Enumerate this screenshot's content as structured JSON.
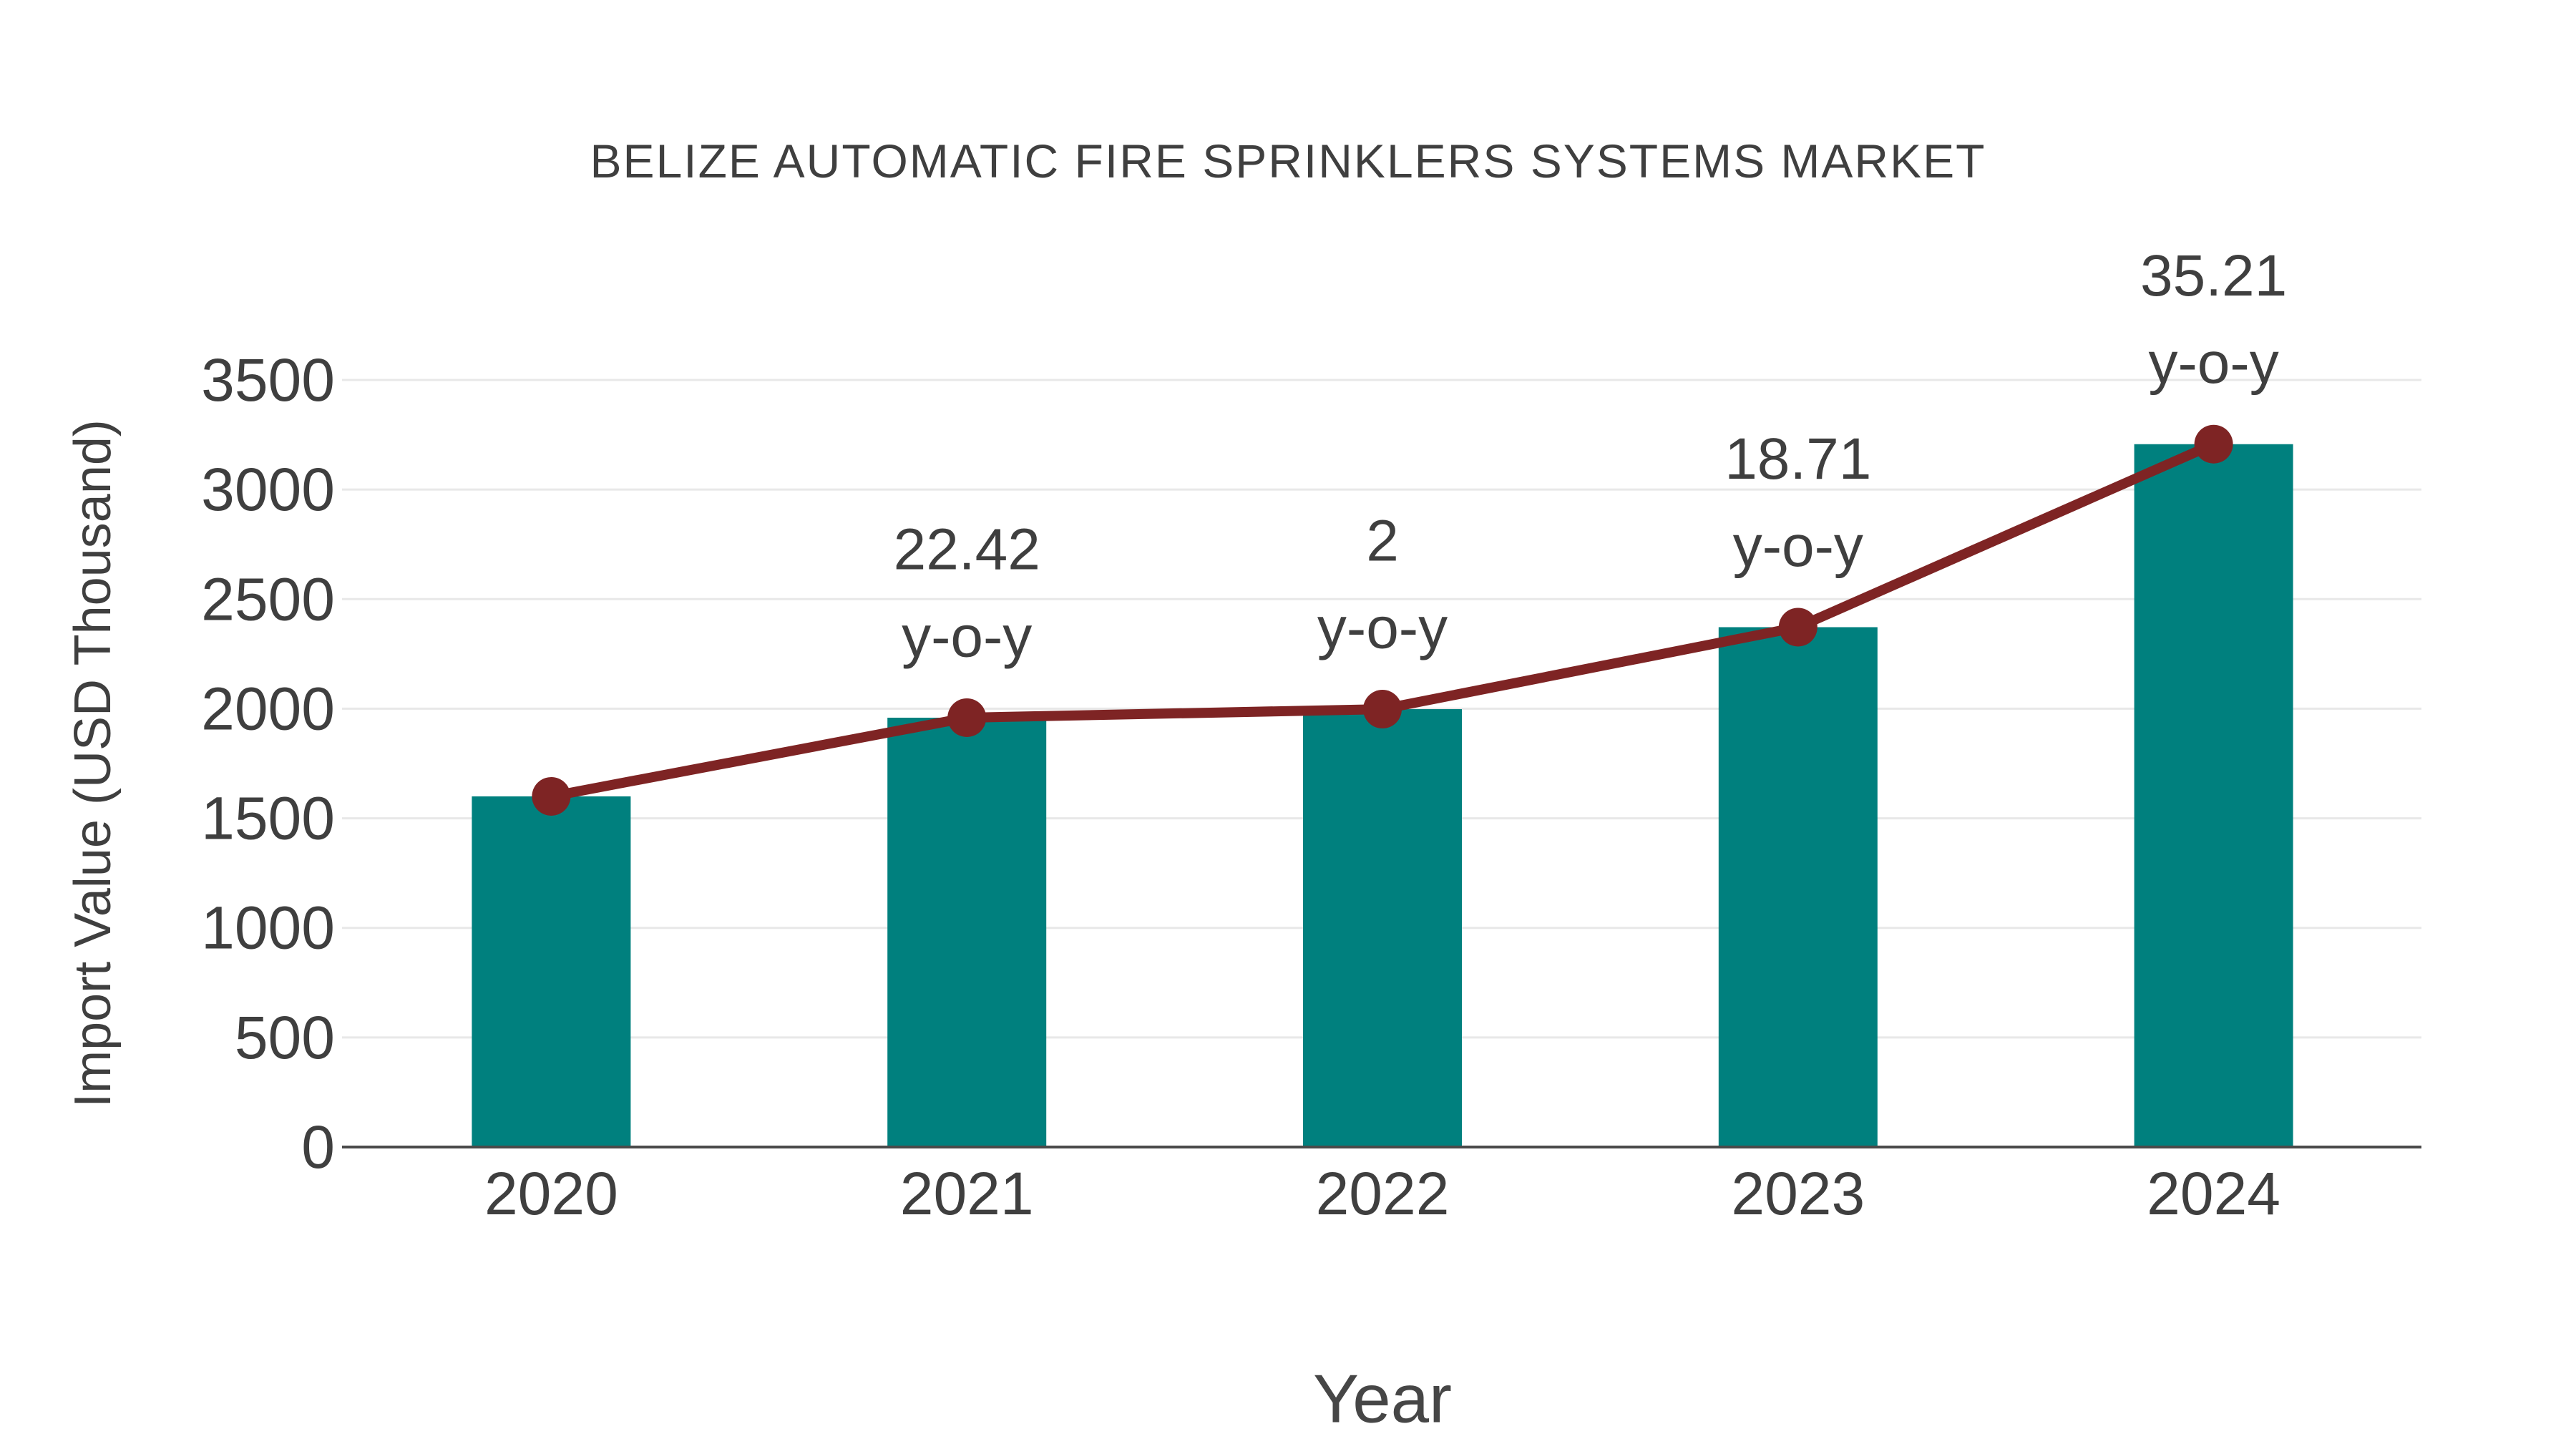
{
  "chart_data": {
    "type": "bar",
    "title": "BELIZE AUTOMATIC FIRE SPRINKLERS SYSTEMS MARKET",
    "xlabel": "Year",
    "ylabel": "Import Value (USD Thousand)",
    "categories": [
      "2020",
      "2021",
      "2022",
      "2023",
      "2024"
    ],
    "series": [
      {
        "name": "Import Value bars",
        "type": "bar",
        "values": [
          1600,
          1959,
          1998,
          2372,
          3207
        ],
        "color": "#00807e"
      },
      {
        "name": "Import Value trend line",
        "type": "line",
        "values": [
          1600,
          1959,
          1998,
          2372,
          3207
        ],
        "color": "#7e2424"
      }
    ],
    "annotations": [
      {
        "category": "2021",
        "value_label": "22.42",
        "suffix": "y-o-y"
      },
      {
        "category": "2022",
        "value_label": "2",
        "suffix": "y-o-y"
      },
      {
        "category": "2023",
        "value_label": "18.71",
        "suffix": "y-o-y"
      },
      {
        "category": "2024",
        "value_label": "35.21",
        "suffix": "y-o-y"
      }
    ],
    "yticks": [
      "0",
      "500",
      "1000",
      "1500",
      "2000",
      "2500",
      "3000",
      "3500"
    ],
    "ylim": [
      0,
      3500
    ],
    "ytick_step": 500,
    "grid": true,
    "legend_position": "none"
  }
}
